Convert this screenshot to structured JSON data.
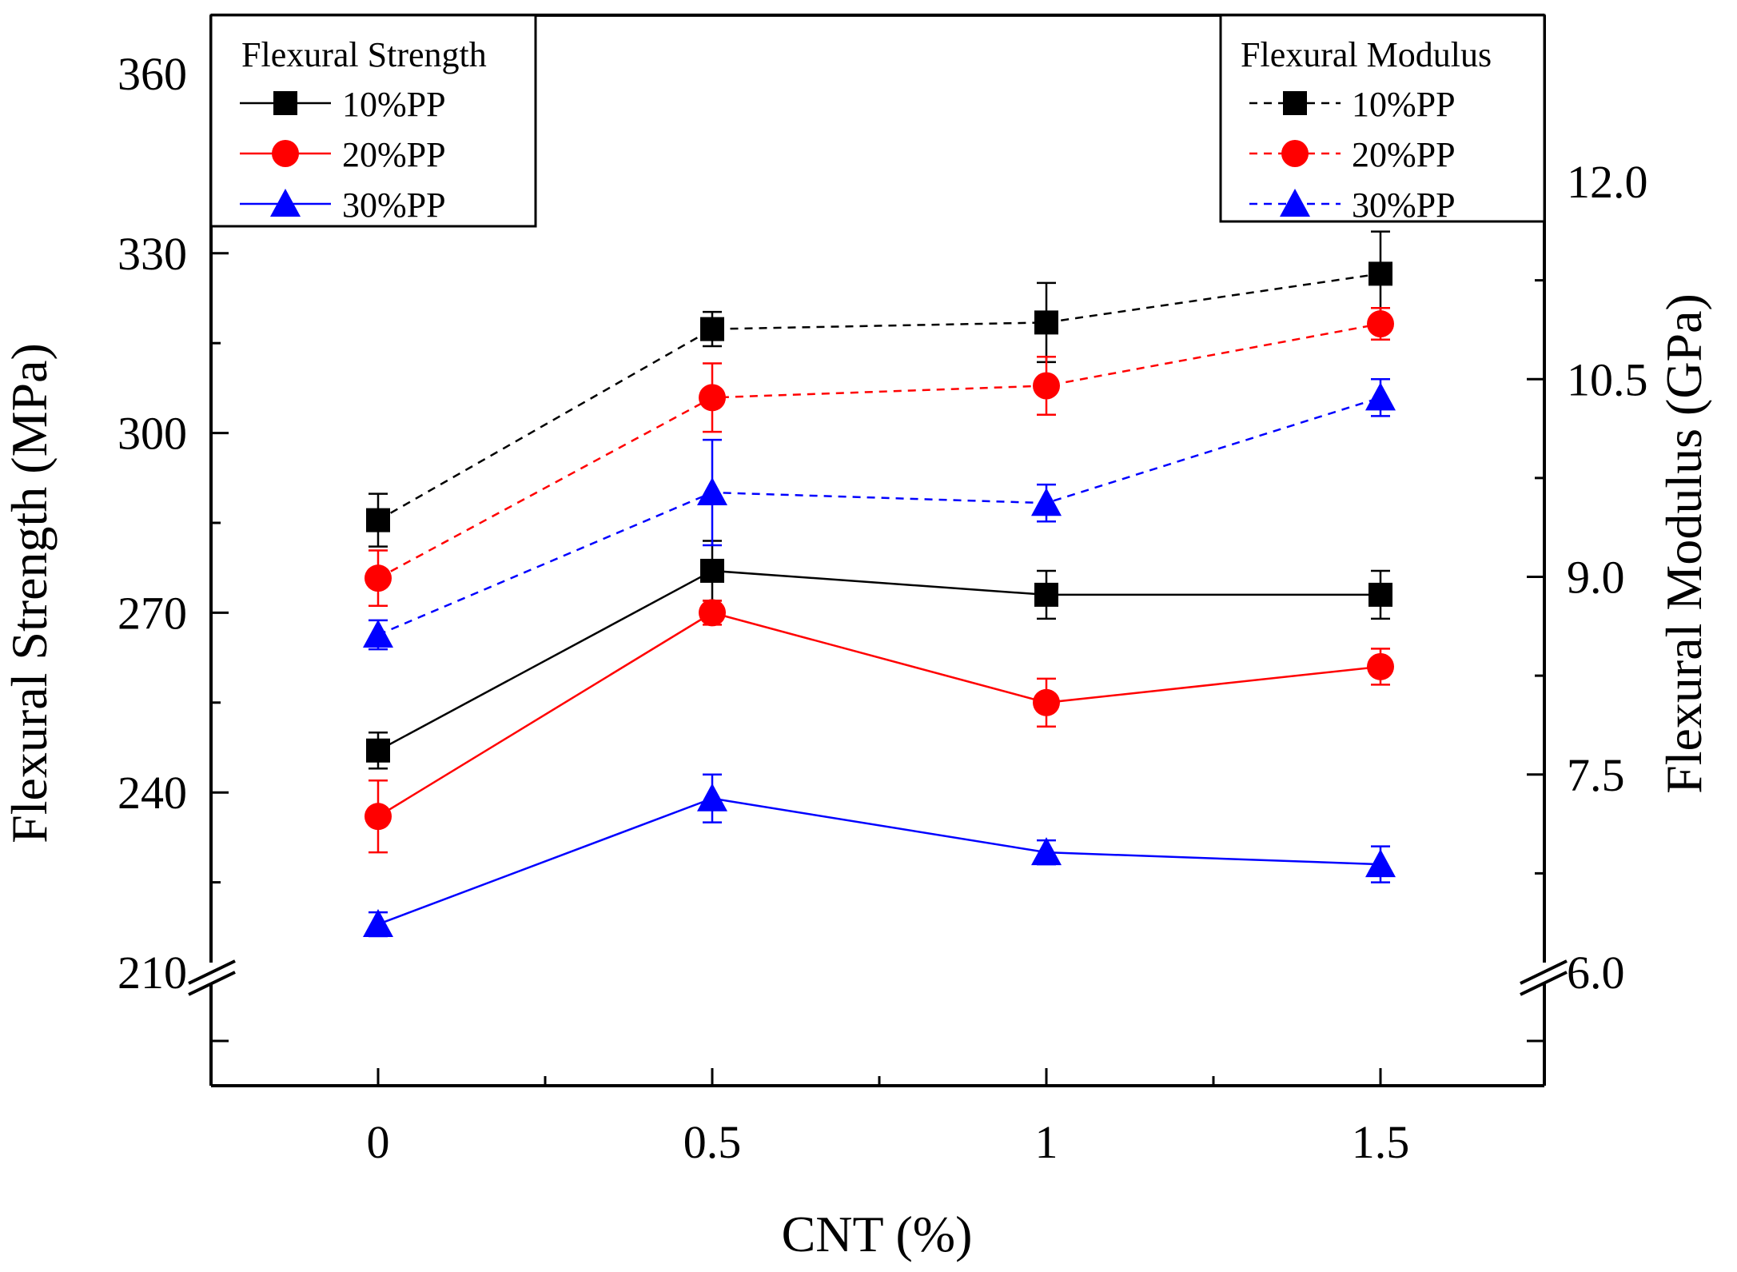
{
  "chart_data": {
    "type": "line",
    "x_values": [
      0,
      0.5,
      1,
      1.5
    ],
    "x_tick_labels": [
      "0",
      "0.5",
      "1",
      "1.5"
    ],
    "xlabel": "CNT (%)",
    "xlim": [
      -0.25,
      1.75
    ],
    "left_axis": {
      "label": "Flexural Strength (MPa)",
      "ylim": [
        190,
        365
      ],
      "break_at": 210,
      "ticks": [
        210,
        240,
        270,
        300,
        330,
        360
      ],
      "tick_labels": [
        "210",
        "240",
        "270",
        "300",
        "330",
        "360"
      ]
    },
    "right_axis": {
      "label": "Flexural Modulus (GPa)",
      "break_at": 6.0,
      "ticks": [
        6.0,
        7.5,
        9.0,
        10.5,
        12.0
      ],
      "tick_labels": [
        "6.0",
        "7.5",
        "9.0",
        "10.5",
        "12.0"
      ],
      "mapping_note": "6.0 GPa aligns with 210 MPa; 1.5 GPa spans about 33 MPa"
    },
    "series": [
      {
        "name": "10%PP",
        "group": "Flexural Strength",
        "axis": "left",
        "marker": "square",
        "line": "solid",
        "color": "#000000",
        "values": [
          247,
          277,
          273,
          273
        ],
        "errors": [
          3,
          5,
          4,
          4
        ]
      },
      {
        "name": "20%PP",
        "group": "Flexural Strength",
        "axis": "left",
        "marker": "circle",
        "line": "solid",
        "color": "#ff0000",
        "values": [
          236,
          270,
          255,
          261
        ],
        "errors": [
          6,
          2,
          4,
          3
        ]
      },
      {
        "name": "30%PP",
        "group": "Flexural Strength",
        "axis": "left",
        "marker": "triangle",
        "line": "solid",
        "color": "#0000ff",
        "values": [
          218,
          239,
          230,
          228
        ],
        "errors": [
          2,
          4,
          2,
          3
        ]
      },
      {
        "name": "10%PP",
        "group": "Flexural Modulus",
        "axis": "right",
        "marker": "square",
        "line": "dashed",
        "color": "#000000",
        "values": [
          9.43,
          10.88,
          10.93,
          11.3
        ],
        "errors": [
          0.2,
          0.13,
          0.3,
          0.32
        ]
      },
      {
        "name": "20%PP",
        "group": "Flexural Modulus",
        "axis": "right",
        "marker": "circle",
        "line": "dashed",
        "color": "#ff0000",
        "values": [
          8.99,
          10.36,
          10.45,
          10.92
        ],
        "errors": [
          0.21,
          0.26,
          0.22,
          0.12
        ]
      },
      {
        "name": "30%PP",
        "group": "Flexural Modulus",
        "axis": "right",
        "marker": "triangle",
        "line": "dashed",
        "color": "#0000ff",
        "values": [
          8.56,
          9.64,
          9.56,
          10.36
        ],
        "errors": [
          0.11,
          0.4,
          0.14,
          0.14
        ]
      }
    ],
    "legends": [
      {
        "title": "Flexural Strength",
        "position": "top-left",
        "entries": [
          "10%PP",
          "20%PP",
          "30%PP"
        ]
      },
      {
        "title": "Flexural Modulus",
        "position": "top-right",
        "entries": [
          "10%PP",
          "20%PP",
          "30%PP"
        ]
      }
    ]
  }
}
